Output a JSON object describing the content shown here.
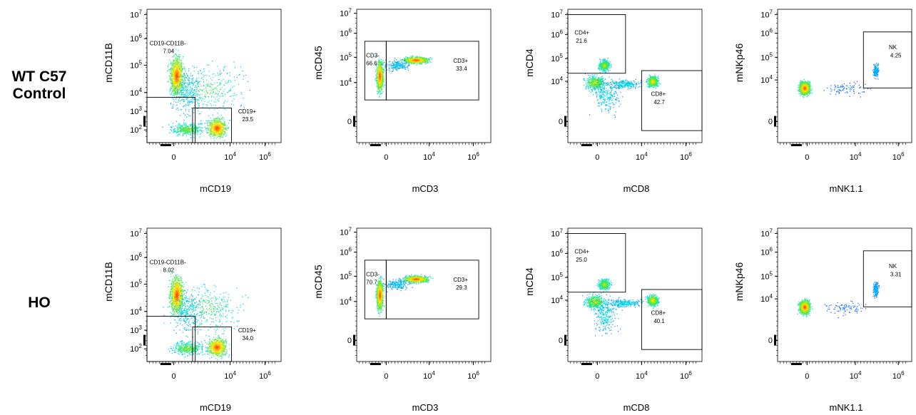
{
  "rows": [
    {
      "label_lines": [
        "WT C57",
        "Control"
      ]
    },
    {
      "label_lines": [
        "HO"
      ]
    }
  ],
  "colors": {
    "density_low": "#1a1aff",
    "density_mid": "#00e0e0",
    "density_high": "#ff2a00",
    "gate": "#000000"
  },
  "chart_data": [
    {
      "type": "scatter",
      "row": "WT C57 Control",
      "xlabel": "mCD19",
      "ylabel": "mCD11B",
      "xscale": "biexponential",
      "yscale": "biexponential",
      "xticks": [
        "0",
        "10^4",
        "10^6"
      ],
      "yticks": [
        "10^2",
        "10^3",
        "10^4",
        "10^5",
        "10^6",
        "10^7"
      ],
      "gates": [
        {
          "name": "CD19-CD11B-",
          "value": "7.04"
        },
        {
          "name": "CD19+",
          "value": "23.5"
        }
      ]
    },
    {
      "type": "scatter",
      "row": "WT C57 Control",
      "xlabel": "mCD3",
      "ylabel": "mCD45",
      "xscale": "biexponential",
      "yscale": "biexponential",
      "xticks": [
        "0",
        "10^4",
        "10^6"
      ],
      "yticks": [
        "0",
        "10^4",
        "10^5",
        "10^6",
        "10^7"
      ],
      "gates": [
        {
          "name": "CD3-",
          "value": "66.6"
        },
        {
          "name": "CD3+",
          "value": "33.4"
        }
      ]
    },
    {
      "type": "scatter",
      "row": "WT C57 Control",
      "xlabel": "mCD8",
      "ylabel": "mCD4",
      "xscale": "biexponential",
      "yscale": "biexponential",
      "xticks": [
        "0",
        "10^4",
        "10^6"
      ],
      "yticks": [
        "0",
        "10^4",
        "10^5",
        "10^6",
        "10^7"
      ],
      "gates": [
        {
          "name": "CD4+",
          "value": "21.6"
        },
        {
          "name": "CD8+",
          "value": "42.7"
        }
      ]
    },
    {
      "type": "scatter",
      "row": "WT C57 Control",
      "xlabel": "mNK1.1",
      "ylabel": "mNKp46",
      "xscale": "biexponential",
      "yscale": "biexponential",
      "xticks": [
        "0",
        "10^4",
        "10^6"
      ],
      "yticks": [
        "0",
        "10^4",
        "10^5",
        "10^6",
        "10^7"
      ],
      "gates": [
        {
          "name": "NK",
          "value": "4.25"
        }
      ]
    },
    {
      "type": "scatter",
      "row": "HO",
      "xlabel": "mCD19",
      "ylabel": "mCD11B",
      "xscale": "biexponential",
      "yscale": "biexponential",
      "xticks": [
        "0",
        "10^4",
        "10^6"
      ],
      "yticks": [
        "10^2",
        "10^3",
        "10^4",
        "10^5",
        "10^6",
        "10^7"
      ],
      "gates": [
        {
          "name": "CD19-CD11B-",
          "value": "8.02"
        },
        {
          "name": "CD19+",
          "value": "34.0"
        }
      ]
    },
    {
      "type": "scatter",
      "row": "HO",
      "xlabel": "mCD3",
      "ylabel": "mCD45",
      "xscale": "biexponential",
      "yscale": "biexponential",
      "xticks": [
        "0",
        "10^4",
        "10^6"
      ],
      "yticks": [
        "0",
        "10^4",
        "10^5",
        "10^6",
        "10^7"
      ],
      "gates": [
        {
          "name": "CD3-",
          "value": "70.7"
        },
        {
          "name": "CD3+",
          "value": "29.3"
        }
      ]
    },
    {
      "type": "scatter",
      "row": "HO",
      "xlabel": "mCD8",
      "ylabel": "mCD4",
      "xscale": "biexponential",
      "yscale": "biexponential",
      "xticks": [
        "0",
        "10^4",
        "10^6"
      ],
      "yticks": [
        "0",
        "10^4",
        "10^5",
        "10^6",
        "10^7"
      ],
      "gates": [
        {
          "name": "CD4+",
          "value": "25.0"
        },
        {
          "name": "CD8+",
          "value": "40.1"
        }
      ]
    },
    {
      "type": "scatter",
      "row": "HO",
      "xlabel": "mNK1.1",
      "ylabel": "mNKp46",
      "xscale": "biexponential",
      "yscale": "biexponential",
      "xticks": [
        "0",
        "10^4",
        "10^6"
      ],
      "yticks": [
        "0",
        "10^4",
        "10^5",
        "10^6",
        "10^7"
      ],
      "gates": [
        {
          "name": "NK",
          "value": "3.31"
        }
      ]
    }
  ]
}
